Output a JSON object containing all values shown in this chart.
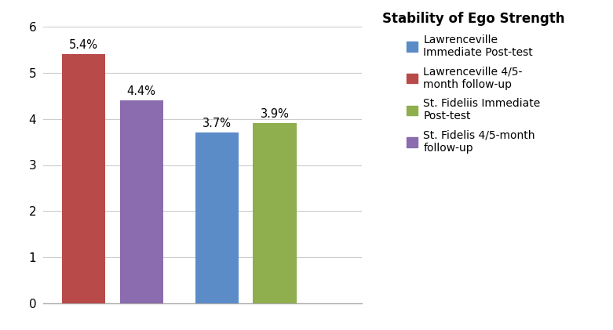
{
  "bars": [
    {
      "value": 5.4,
      "color": "#b84a4a",
      "text": "5.4%"
    },
    {
      "value": 4.4,
      "color": "#8b6cae",
      "text": "4.4%"
    },
    {
      "value": 3.7,
      "color": "#5b8cc8",
      "text": "3.7%"
    },
    {
      "value": 3.9,
      "color": "#8fae4e",
      "text": "3.9%"
    }
  ],
  "x_positions": [
    0.7,
    1.7,
    3.0,
    4.0
  ],
  "bar_width": 0.75,
  "legend_title": "Stability of Ego Strength",
  "legend_order": [
    {
      "label": "Lawrenceville\nImmediate Post-test",
      "color": "#5b8cc8"
    },
    {
      "label": "Lawrenceville 4/5-\nmonth follow-up",
      "color": "#b84a4a"
    },
    {
      "label": "St. Fideliis Immediate\nPost-test",
      "color": "#8fae4e"
    },
    {
      "label": "St. Fidelis 4/5-month\nfollow-up",
      "color": "#8b6cae"
    }
  ],
  "ylim": [
    0,
    6
  ],
  "yticks": [
    0,
    1,
    2,
    3,
    4,
    5,
    6
  ],
  "xlim": [
    0.0,
    5.5
  ],
  "background_color": "#ffffff",
  "grid_color": "#cccccc",
  "label_fontsize": 10.5,
  "tick_fontsize": 11,
  "legend_fontsize": 10,
  "title_fontsize": 12
}
